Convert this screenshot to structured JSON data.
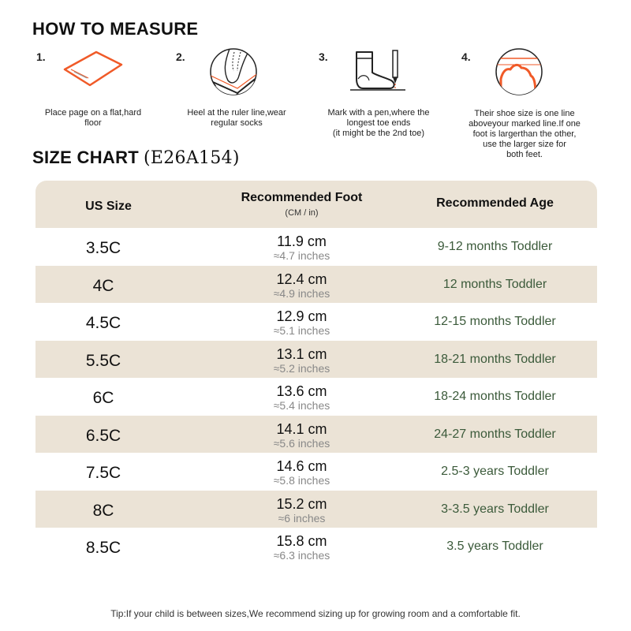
{
  "how_to": {
    "title": "HOW TO MEASURE",
    "steps": [
      {
        "number": "1.",
        "caption": "Place page on a flat,hard\nfloor",
        "icon": "paper-icon"
      },
      {
        "number": "2.",
        "caption": "Heel at the ruler line,wear\nregular socks",
        "icon": "heel-ruler-icon"
      },
      {
        "number": "3.",
        "caption": "Mark with a pen,where the\nlongest toe ends\n(it might be the 2nd toe)",
        "icon": "sock-pen-icon"
      },
      {
        "number": "4.",
        "caption": "Their shoe size is one line\naboveyour marked line.If one\nfoot is largerthan the other,\nuse the larger size for\nboth feet.",
        "icon": "toe-line-icon"
      }
    ]
  },
  "size_chart": {
    "title": "SIZE CHART",
    "code": "(E26A154)",
    "headers": {
      "size": "US Size",
      "foot": "Recommended Foot",
      "foot_unit": "(CM / in)",
      "age": "Recommended Age"
    },
    "rows": [
      {
        "size": "3.5C",
        "cm": "11.9 cm",
        "inch": "≈4.7 inches",
        "age": "9-12 months Toddler"
      },
      {
        "size": "4C",
        "cm": "12.4 cm",
        "inch": "≈4.9 inches",
        "age": "12 months Toddler"
      },
      {
        "size": "4.5C",
        "cm": "12.9 cm",
        "inch": "≈5.1 inches",
        "age": "12-15 months Toddler"
      },
      {
        "size": "5.5C",
        "cm": "13.1 cm",
        "inch": "≈5.2 inches",
        "age": "18-21 months Toddler"
      },
      {
        "size": "6C",
        "cm": "13.6 cm",
        "inch": "≈5.4 inches",
        "age": "18-24 months Toddler"
      },
      {
        "size": "6.5C",
        "cm": "14.1 cm",
        "inch": "≈5.6 inches",
        "age": "24-27 months Toddler"
      },
      {
        "size": "7.5C",
        "cm": "14.6 cm",
        "inch": "≈5.8 inches",
        "age": "2.5-3 years Toddler"
      },
      {
        "size": "8C",
        "cm": "15.2 cm",
        "inch": "≈6 inches",
        "age": "3-3.5 years Toddler"
      },
      {
        "size": "8.5C",
        "cm": "15.8 cm",
        "inch": "≈6.3 inches",
        "age": "3.5 years Toddler"
      }
    ]
  },
  "tip": "Tip:If your child is between sizes,We recommend sizing up for growing room and a comfortable fit.",
  "colors": {
    "accent": "#f05a28",
    "band": "#ebe3d6",
    "age_text": "#3b5a3a",
    "inch_text": "#888888"
  }
}
